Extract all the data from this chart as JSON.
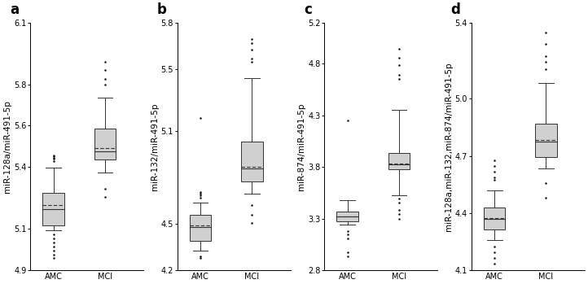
{
  "panels": [
    {
      "label": "a",
      "ylabel": "miR-128a/miR-491-5p",
      "ylim": [
        4.9,
        6.1
      ],
      "yticks": [
        4.9,
        5.1,
        5.4,
        5.6,
        5.8,
        6.1
      ],
      "ytick_labels": [
        "4.9",
        "5.1",
        "5.4",
        "5.6",
        "5.8",
        "6.1"
      ],
      "groups": {
        "AMC": {
          "whisker_low": 5.095,
          "q1": 5.115,
          "median": 5.195,
          "mean": 5.215,
          "q3": 5.275,
          "whisker_high": 5.395,
          "outliers_low": [
            5.075,
            5.055,
            5.035,
            5.015,
            4.995,
            4.975,
            4.96
          ],
          "outliers_high": [
            5.43,
            5.44,
            5.445,
            5.45,
            5.455
          ]
        },
        "MCI": {
          "whisker_low": 5.375,
          "q1": 5.435,
          "median": 5.475,
          "mean": 5.49,
          "q3": 5.585,
          "whisker_high": 5.735,
          "outliers_low": [
            5.295,
            5.255
          ],
          "outliers_high": [
            5.8,
            5.825,
            5.87,
            5.91
          ]
        }
      }
    },
    {
      "label": "b",
      "ylabel": "miR-132/miR-491-5p",
      "ylim": [
        4.2,
        5.8
      ],
      "yticks": [
        4.2,
        4.5,
        5.1,
        5.5,
        5.8
      ],
      "ytick_labels": [
        "4.2",
        "4.5",
        "5.1",
        "5.5",
        "5.8"
      ],
      "groups": {
        "AMC": {
          "whisker_low": 4.325,
          "q1": 4.39,
          "median": 4.48,
          "mean": 4.49,
          "q3": 4.555,
          "whisker_high": 4.635,
          "outliers_low": [
            4.29,
            4.28
          ],
          "outliers_high": [
            4.67,
            4.685,
            4.695,
            4.705,
            5.185
          ]
        },
        "MCI": {
          "whisker_low": 4.695,
          "q1": 4.775,
          "median": 4.855,
          "mean": 4.865,
          "q3": 5.03,
          "whisker_high": 5.44,
          "outliers_low": [
            4.62,
            4.555,
            4.505
          ],
          "outliers_high": [
            5.545,
            5.565,
            5.625,
            5.665,
            5.695
          ]
        }
      }
    },
    {
      "label": "c",
      "ylabel": "miR-874/miR-491-5p",
      "ylim": [
        2.8,
        5.2
      ],
      "yticks": [
        2.8,
        3.3,
        3.8,
        4.3,
        4.8,
        5.2
      ],
      "ytick_labels": [
        "2.8",
        "3.3",
        "3.8",
        "4.3",
        "4.8",
        "5.2"
      ],
      "groups": {
        "AMC": {
          "whisker_low": 3.24,
          "q1": 3.275,
          "median": 3.32,
          "mean": 3.32,
          "q3": 3.37,
          "whisker_high": 3.475,
          "outliers_low": [
            3.175,
            3.145,
            3.105,
            2.975,
            2.935
          ],
          "outliers_high": [
            4.25
          ]
        },
        "MCI": {
          "whisker_low": 3.525,
          "q1": 3.775,
          "median": 3.825,
          "mean": 3.83,
          "q3": 3.935,
          "whisker_high": 4.355,
          "outliers_low": [
            3.495,
            3.455,
            3.38,
            3.345,
            3.295
          ],
          "outliers_high": [
            4.655,
            4.695,
            4.785,
            4.855,
            4.945
          ]
        }
      }
    },
    {
      "label": "d",
      "ylabel": "miR-128a,miR-132,miR-874/miR-491-5p",
      "ylim": [
        4.1,
        5.4
      ],
      "yticks": [
        4.1,
        4.4,
        4.7,
        5.0,
        5.4
      ],
      "ytick_labels": [
        "4.1",
        "4.4",
        "4.7",
        "5.0",
        "5.4"
      ],
      "groups": {
        "AMC": {
          "whisker_low": 4.26,
          "q1": 4.315,
          "median": 4.37,
          "mean": 4.375,
          "q3": 4.43,
          "whisker_high": 4.52,
          "outliers_low": [
            4.225,
            4.195,
            4.165,
            4.135
          ],
          "outliers_high": [
            4.575,
            4.585,
            4.615,
            4.645,
            4.675
          ]
        },
        "MCI": {
          "whisker_low": 4.635,
          "q1": 4.695,
          "median": 4.775,
          "mean": 4.785,
          "q3": 4.87,
          "whisker_high": 5.08,
          "outliers_low": [
            4.555,
            4.48
          ],
          "outliers_high": [
            5.155,
            5.195,
            5.225,
            5.285,
            5.345
          ]
        }
      }
    }
  ],
  "box_color": "#d0d0d0",
  "box_edgecolor": "#333333",
  "whisker_color": "#333333",
  "median_color": "#333333",
  "mean_color": "#333333",
  "outlier_color": "#111111",
  "background_color": "#ffffff",
  "label_fontsize": 12,
  "tick_fontsize": 7,
  "ylabel_fontsize": 7.5
}
